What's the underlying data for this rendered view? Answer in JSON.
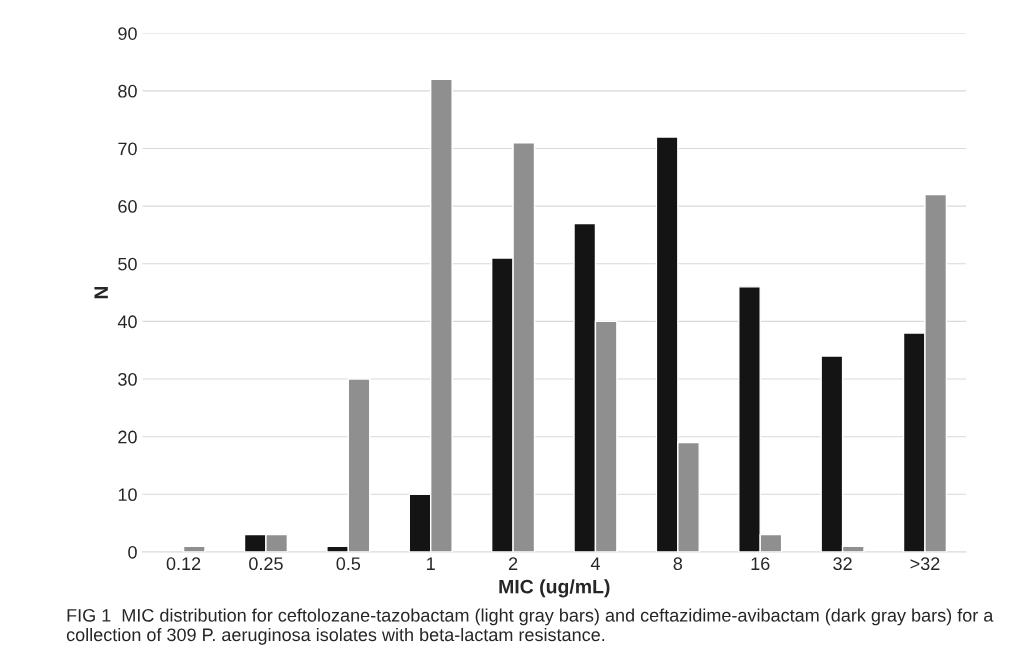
{
  "chart_data": {
    "type": "bar",
    "xlabel": "MIC (ug/mL)",
    "ylabel": "N",
    "categories": [
      "0.12",
      "0.25",
      "0.5",
      "1",
      "2",
      "4",
      "8",
      "16",
      "32",
      ">32"
    ],
    "series": [
      {
        "color": "#141414",
        "values": [
          null,
          3,
          1,
          10,
          51,
          57,
          72,
          46,
          34,
          38
        ]
      },
      {
        "color": "#8f8f8f",
        "values": [
          1,
          3,
          30,
          82,
          71,
          40,
          19,
          3,
          1,
          62
        ]
      }
    ],
    "ylim": [
      0,
      90
    ],
    "yticks": [
      0,
      10,
      20,
      30,
      40,
      50,
      60,
      70,
      80,
      90
    ],
    "grid": "y",
    "annotations": [
      "FIG 1  MIC distribution for ceftolozane-tazobactam (light gray bars) and ceftazidime-avibactam (dark gray bars) for a collection of 309 P. aeruginosa isolates with beta-lactam resistance."
    ]
  }
}
